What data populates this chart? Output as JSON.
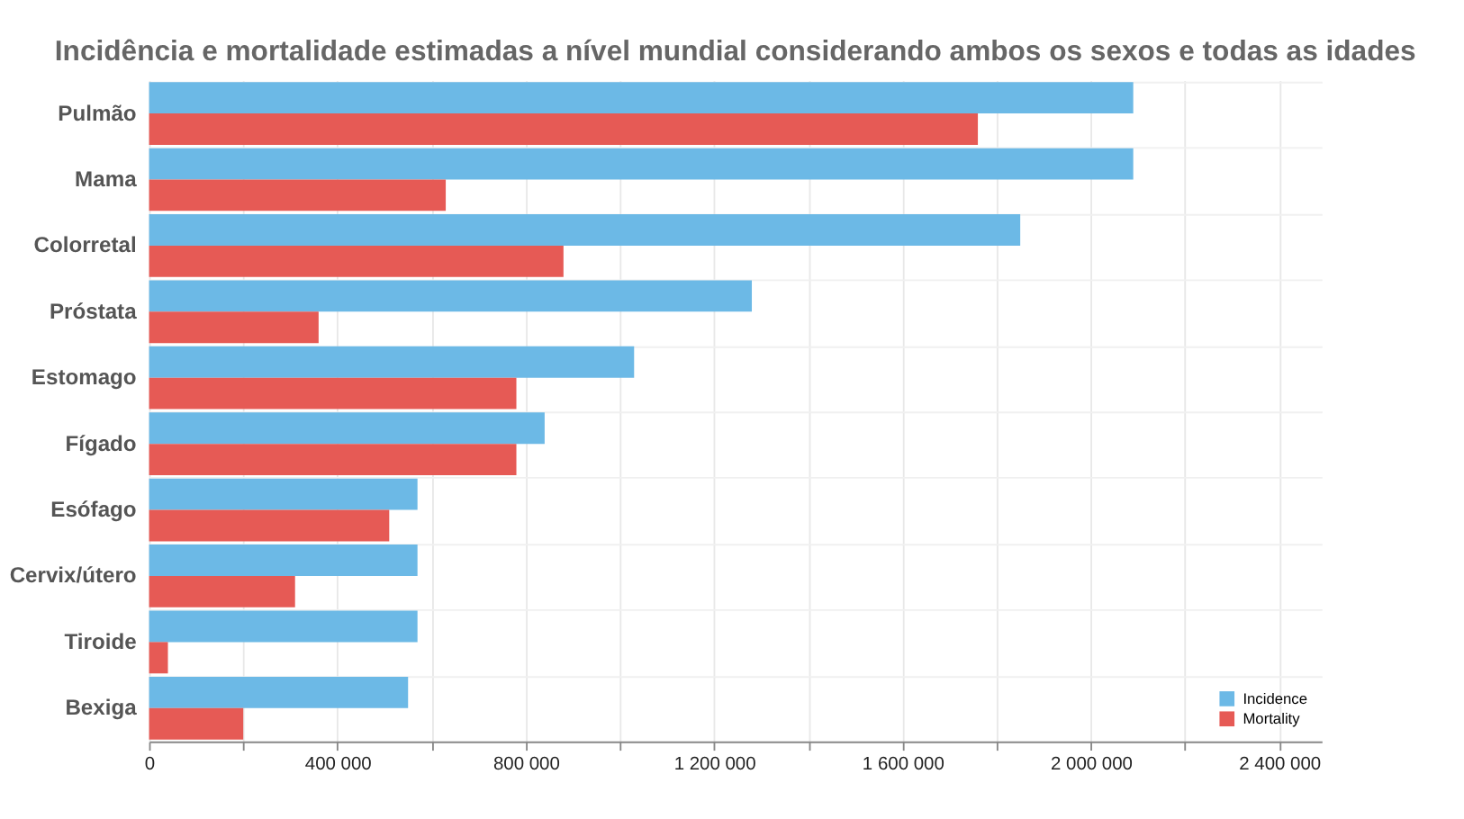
{
  "chart_data": {
    "type": "bar",
    "orientation": "horizontal",
    "title": "Incidência e mortalidade estimadas a nível mundial considerando ambos os sexos e todas as idades",
    "categories": [
      "Pulmão",
      "Mama",
      "Colorretal",
      "Próstata",
      "Estomago",
      "Fígado",
      "Esófago",
      "Cervix/útero",
      "Tiroide",
      "Bexiga"
    ],
    "series": [
      {
        "name": "Incidence",
        "color": "#6cb9e6",
        "values": [
          2090000,
          2090000,
          1850000,
          1280000,
          1030000,
          840000,
          570000,
          570000,
          570000,
          550000
        ]
      },
      {
        "name": "Mortality",
        "color": "#e65a55",
        "values": [
          1760000,
          630000,
          880000,
          360000,
          780000,
          780000,
          510000,
          310000,
          40000,
          200000
        ]
      }
    ],
    "xlim": [
      0,
      2490000
    ],
    "xticks": [
      {
        "value": 0,
        "label": "0"
      },
      {
        "value": 200000,
        "label": null
      },
      {
        "value": 400000,
        "label": "400 000"
      },
      {
        "value": 600000,
        "label": null
      },
      {
        "value": 800000,
        "label": "800 000"
      },
      {
        "value": 1000000,
        "label": null
      },
      {
        "value": 1200000,
        "label": "1 200 000"
      },
      {
        "value": 1400000,
        "label": null
      },
      {
        "value": 1600000,
        "label": "1 600 000"
      },
      {
        "value": 1800000,
        "label": null
      },
      {
        "value": 2000000,
        "label": "2 000 000"
      },
      {
        "value": 2200000,
        "label": null
      },
      {
        "value": 2400000,
        "label": "2 400 000"
      }
    ],
    "grid": true,
    "legend": "bottom right"
  }
}
